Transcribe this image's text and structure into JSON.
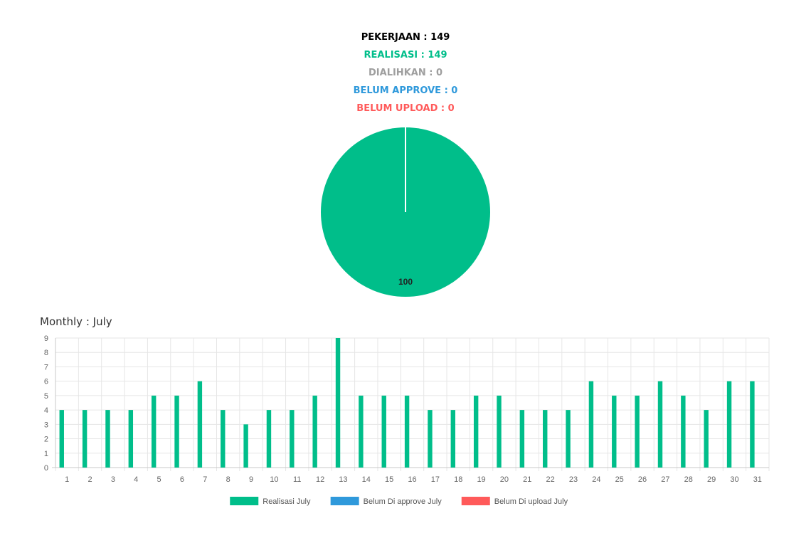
{
  "summary": {
    "pekerjaan": "PEKERJAAN : 149",
    "realisasi": "REALISASI : 149",
    "dialihkan": "DIALIHKAN : 0",
    "belum_approve": "BELUM APPROVE : 0",
    "belum_upload": "BELUM UPLOAD : 0"
  },
  "colors": {
    "pekerjaan": "#000000",
    "realisasi": "#00BE8A",
    "dialihkan": "#9E9E9E",
    "belum_approve": "#2F99DB",
    "belum_upload": "#FF5A5A"
  },
  "monthly_title": "Monthly : July",
  "chart_data": [
    {
      "type": "pie",
      "slices": [
        {
          "label": "Realisasi",
          "value": 100,
          "color": "#00BE8A"
        },
        {
          "label": "Dialihkan",
          "value": 0,
          "color": "#9E9E9E"
        }
      ],
      "data_label": "100"
    },
    {
      "type": "bar",
      "categories": [
        "1",
        "2",
        "3",
        "4",
        "5",
        "6",
        "7",
        "8",
        "9",
        "10",
        "11",
        "12",
        "13",
        "14",
        "15",
        "16",
        "17",
        "18",
        "19",
        "20",
        "21",
        "22",
        "23",
        "24",
        "25",
        "26",
        "27",
        "28",
        "29",
        "30",
        "31"
      ],
      "series": [
        {
          "name": "Realisasi July",
          "color": "#00BE8A",
          "values": [
            4,
            4,
            4,
            4,
            5,
            5,
            6,
            4,
            3,
            4,
            4,
            5,
            9,
            5,
            5,
            5,
            4,
            4,
            5,
            5,
            4,
            4,
            4,
            6,
            5,
            5,
            6,
            5,
            4,
            6,
            6
          ]
        },
        {
          "name": "Belum Di approve July",
          "color": "#2F99DB",
          "values": [
            0,
            0,
            0,
            0,
            0,
            0,
            0,
            0,
            0,
            0,
            0,
            0,
            0,
            0,
            0,
            0,
            0,
            0,
            0,
            0,
            0,
            0,
            0,
            0,
            0,
            0,
            0,
            0,
            0,
            0,
            0
          ]
        },
        {
          "name": "Belum Di upload July",
          "color": "#FF5A5A",
          "values": [
            0,
            0,
            0,
            0,
            0,
            0,
            0,
            0,
            0,
            0,
            0,
            0,
            0,
            0,
            0,
            0,
            0,
            0,
            0,
            0,
            0,
            0,
            0,
            0,
            0,
            0,
            0,
            0,
            0,
            0,
            0
          ]
        }
      ],
      "ylim": [
        0,
        9
      ],
      "yticks": [
        0,
        1,
        2,
        3,
        4,
        5,
        6,
        7,
        8,
        9
      ],
      "grid": true,
      "legend_position": "bottom"
    }
  ]
}
